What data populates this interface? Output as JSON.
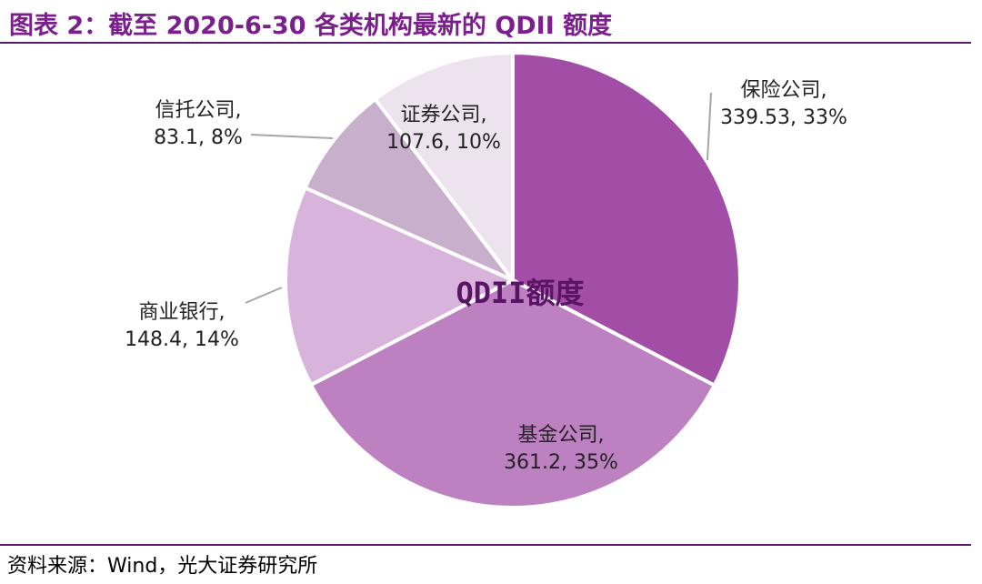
{
  "figure_title": "图表 2：截至 2020-6-30 各类机构最新的 QDII 额度",
  "source": "资料来源：Wind，光大证券研究所",
  "chart_data": {
    "type": "pie",
    "center_label": "QDII额度",
    "slices": [
      {
        "name": "保险公司",
        "value": 339.53,
        "percent": "33%",
        "value_label": "339.53, 33%",
        "color": "#a24ea6"
      },
      {
        "name": "基金公司",
        "value": 361.2,
        "percent": "35%",
        "value_label": "361.2, 35%",
        "color": "#bd80c0"
      },
      {
        "name": "商业银行",
        "value": 148.4,
        "percent": "14%",
        "value_label": "148.4, 14%",
        "color": "#d8b3dc"
      },
      {
        "name": "信托公司",
        "value": 83.1,
        "percent": "8%",
        "value_label": "83.1, 8%",
        "color": "#c8b0cc"
      },
      {
        "name": "证券公司",
        "value": 107.6,
        "percent": "10%",
        "value_label": "107.6, 10%",
        "color": "#ede3ee"
      }
    ],
    "legend": "none"
  }
}
